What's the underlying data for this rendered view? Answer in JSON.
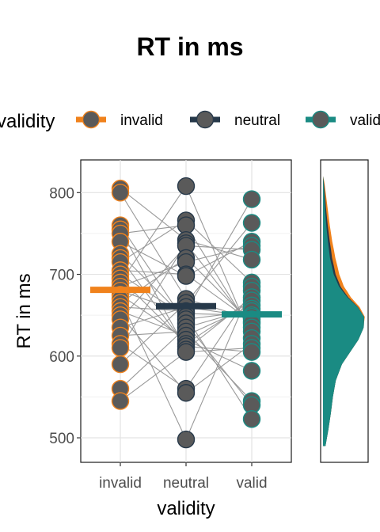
{
  "chart_data": [
    {
      "type": "scatter",
      "title": "RT in ms",
      "xlabel": "validity",
      "ylabel": "RT in ms",
      "categories": [
        "invalid",
        "neutral",
        "valid"
      ],
      "ylim": [
        470,
        840
      ],
      "yticks": [
        500,
        600,
        700,
        800
      ],
      "grid": true,
      "legend": {
        "title": "validity",
        "position": "top",
        "entries": [
          "invalid",
          "neutral",
          "valid"
        ]
      },
      "colors": {
        "invalid": "#f0821c",
        "neutral": "#27394a",
        "valid": "#1a8b83",
        "points": "#5a5a5a",
        "lines": "#999999"
      },
      "series": [
        {
          "name": "invalid",
          "mean": 681,
          "values": [
            805,
            800,
            760,
            755,
            750,
            740,
            725,
            720,
            715,
            705,
            700,
            695,
            690,
            685,
            680,
            675,
            670,
            665,
            660,
            655,
            650,
            645,
            635,
            625,
            615,
            610,
            590,
            560,
            545
          ]
        },
        {
          "name": "neutral",
          "mean": 661,
          "values": [
            808,
            766,
            760,
            742,
            738,
            735,
            720,
            715,
            700,
            698,
            670,
            665,
            660,
            655,
            652,
            648,
            645,
            640,
            635,
            630,
            625,
            620,
            615,
            612,
            608,
            605,
            560,
            555,
            498
          ]
        },
        {
          "name": "valid",
          "mean": 651,
          "values": [
            792,
            763,
            740,
            735,
            730,
            718,
            690,
            685,
            680,
            672,
            668,
            662,
            658,
            655,
            650,
            648,
            645,
            642,
            640,
            635,
            630,
            622,
            615,
            610,
            605,
            582,
            545,
            540,
            523
          ]
        }
      ]
    },
    {
      "type": "area",
      "orientation": "vertical-density",
      "stacked": true,
      "series": [
        {
          "name": "valid",
          "y": [
            490,
            510,
            530,
            550,
            570,
            590,
            605,
            620,
            635,
            648,
            660,
            672,
            685,
            700,
            720,
            740,
            760,
            780,
            800,
            815,
            820
          ],
          "density": [
            0.06,
            0.13,
            0.19,
            0.24,
            0.31,
            0.46,
            0.66,
            0.86,
            0.99,
            1.0,
            0.84,
            0.59,
            0.39,
            0.26,
            0.17,
            0.12,
            0.08,
            0.05,
            0.03,
            0.01,
            0.0
          ]
        },
        {
          "name": "neutral",
          "y": [
            650,
            670,
            690,
            710,
            730,
            750,
            770,
            790,
            810,
            820
          ],
          "density": [
            0.0,
            0.02,
            0.04,
            0.05,
            0.05,
            0.04,
            0.03,
            0.02,
            0.01,
            0.0
          ]
        },
        {
          "name": "invalid",
          "y": [
            640,
            660,
            680,
            700,
            720,
            740,
            760,
            780,
            800,
            815,
            820
          ],
          "density": [
            0.0,
            0.04,
            0.08,
            0.09,
            0.08,
            0.06,
            0.05,
            0.04,
            0.02,
            0.01,
            0.0
          ]
        }
      ]
    }
  ]
}
